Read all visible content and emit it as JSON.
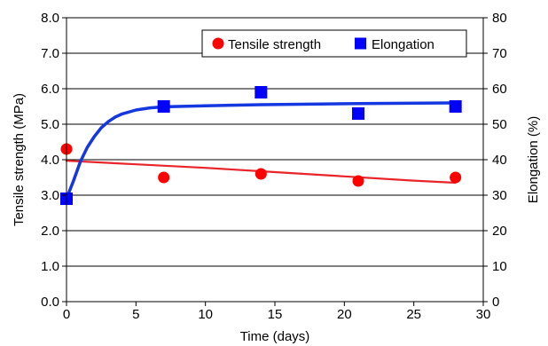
{
  "chart_data": {
    "type": "scatter",
    "title": "",
    "xlabel": "Time (days)",
    "ylabel": "Tensile strength (MPa)",
    "y2label": "Elongation (%)",
    "xlim": [
      0,
      30
    ],
    "ylim": [
      0,
      8
    ],
    "y2lim": [
      0,
      80
    ],
    "x_ticks": [
      "0",
      "5",
      "10",
      "15",
      "20",
      "25",
      "30"
    ],
    "y_ticks": [
      "0.0",
      "1.0",
      "2.0",
      "3.0",
      "4.0",
      "5.0",
      "6.0",
      "7.0",
      "8.0"
    ],
    "y2_ticks": [
      "0",
      "10",
      "20",
      "30",
      "40",
      "50",
      "60",
      "70",
      "80"
    ],
    "grid": "horizontal",
    "legend_position": "top-right",
    "series": [
      {
        "name": "Tensile strength",
        "axis": "left",
        "marker": "circle",
        "color": "#ff0000",
        "x": [
          0,
          7,
          14,
          21,
          28
        ],
        "y": [
          4.3,
          3.5,
          3.6,
          3.4,
          3.5
        ],
        "fit_color": "#e8242a",
        "fit": {
          "x": [
            0,
            5,
            10,
            15,
            20,
            25,
            28
          ],
          "y": [
            3.97,
            3.87,
            3.77,
            3.65,
            3.53,
            3.41,
            3.35
          ]
        }
      },
      {
        "name": "Elongation",
        "axis": "right",
        "marker": "square",
        "color": "#0000ff",
        "x": [
          0,
          7,
          14,
          21,
          28
        ],
        "y": [
          29,
          55,
          59,
          53,
          55
        ],
        "fit_color": "#1537e0",
        "fit": {
          "x": [
            0,
            0.5,
            1,
            1.5,
            2,
            2.5,
            3,
            3.5,
            4,
            5,
            6,
            7,
            10,
            14,
            21,
            28
          ],
          "y": [
            29,
            34,
            39.5,
            43.5,
            46.5,
            49,
            50.7,
            52,
            52.9,
            54,
            54.6,
            54.9,
            55.2,
            55.5,
            55.8,
            56
          ]
        }
      }
    ]
  }
}
